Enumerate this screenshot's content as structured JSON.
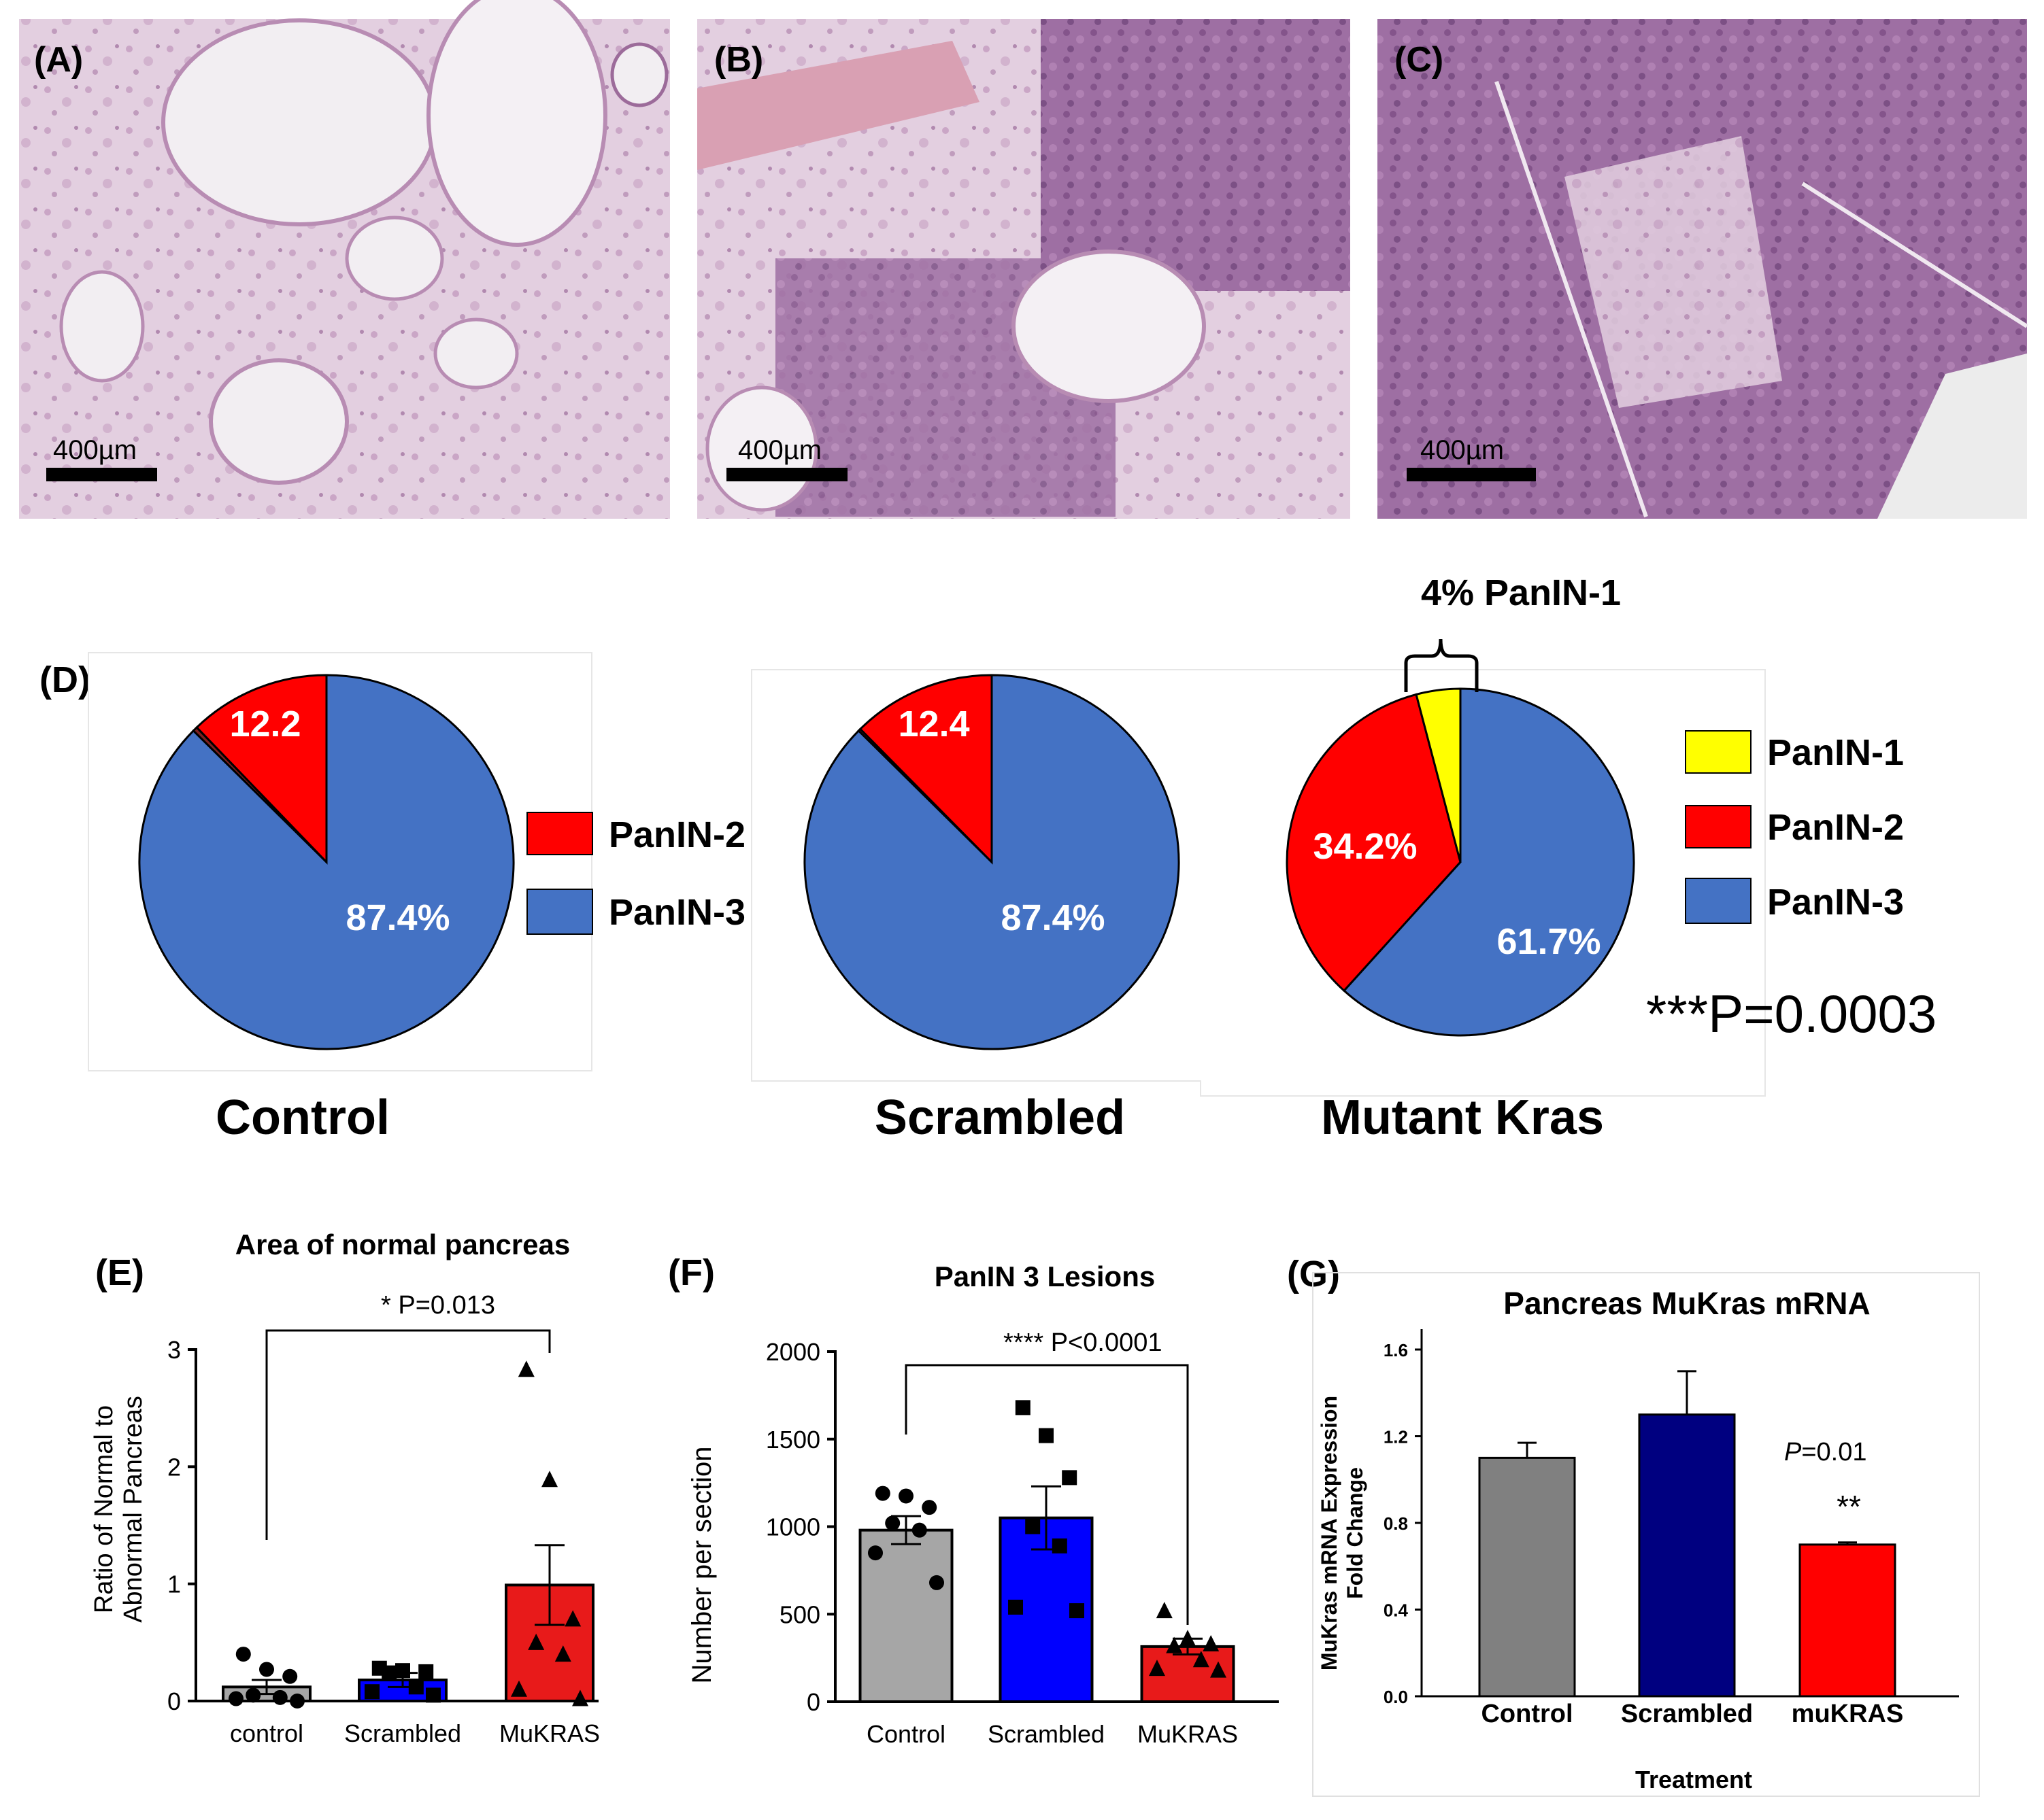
{
  "micrographs": [
    {
      "panel_label": "(A)",
      "scale_bar_label": "400µm"
    },
    {
      "panel_label": "(B)",
      "scale_bar_label": "400µm"
    },
    {
      "panel_label": "(C)",
      "scale_bar_label": "400µm"
    }
  ],
  "colors": {
    "blue": "#4472C4",
    "red": "#FF0000",
    "yellow": "#FFFF00",
    "gray": "#A6A6A6",
    "bar_blue": "#0000FF",
    "bar_red": "#E81A1A",
    "gray_g": "#808080",
    "navy": "#000080",
    "red_g": "#FF0000",
    "tissue_pink": "#c49bbd",
    "tissue_dark": "#8a5a90",
    "tissue_light": "#ebdde9"
  },
  "panel_d": {
    "panel_label": "(D)",
    "brace_label": "4% PanIN-1",
    "p_value": "***P=0.0003",
    "legend_left": [
      "PanIN-2",
      "PanIN-3"
    ],
    "legend_right": [
      "PanIN-1",
      "PanIN-2",
      "PanIN-3"
    ]
  },
  "panel_e": {
    "panel_label": "(E)",
    "sig_label": "* P=0.013"
  },
  "panel_f": {
    "panel_label": "(F)",
    "sig_label": "**** P<0.0001"
  },
  "panel_g": {
    "panel_label": "(G)",
    "sig_label": "**",
    "p_label": "P=0.01"
  },
  "chart_data": [
    {
      "type": "pie",
      "title": "Control",
      "slices": [
        {
          "label": "PanIN-2",
          "value": 12.2,
          "display": "12.2",
          "color": "#FF0000"
        },
        {
          "label": "PanIN-3",
          "value": 87.4,
          "display": "87.4%",
          "color": "#4472C4"
        },
        {
          "label": "Other",
          "value": 0.4,
          "display": "",
          "color": "#7f2020"
        }
      ]
    },
    {
      "type": "pie",
      "title": "Scrambled",
      "slices": [
        {
          "label": "PanIN-2",
          "value": 12.4,
          "display": "12.4",
          "color": "#FF0000"
        },
        {
          "label": "PanIN-3",
          "value": 87.4,
          "display": "87.4%",
          "color": "#4472C4"
        },
        {
          "label": "Other",
          "value": 0.2,
          "display": "",
          "color": "#7f2020"
        }
      ]
    },
    {
      "type": "pie",
      "title": "Mutant Kras",
      "slices": [
        {
          "label": "PanIN-1",
          "value": 4.1,
          "display": "",
          "color": "#FFFF00"
        },
        {
          "label": "PanIN-2",
          "value": 34.2,
          "display": "34.2%",
          "color": "#FF0000"
        },
        {
          "label": "PanIN-3",
          "value": 61.7,
          "display": "61.7%",
          "color": "#4472C4"
        }
      ]
    },
    {
      "type": "bar",
      "title": "Area of normal pancreas",
      "ylabel": "Ratio of Normal to Abnormal Pancreas",
      "ylim": [
        0,
        3
      ],
      "yticks": [
        0,
        1,
        2,
        3
      ],
      "categories": [
        "control",
        "Scrambled",
        "MuKRAS"
      ],
      "values": [
        0.12,
        0.18,
        0.99
      ],
      "errors": [
        0.06,
        0.06,
        0.34
      ],
      "colors": [
        "#A6A6A6",
        "#0000FF",
        "#E81A1A"
      ],
      "markers": [
        "circle",
        "square",
        "triangle"
      ],
      "points": [
        [
          0.4,
          0.27,
          0.21,
          0.05,
          0.03,
          0.02,
          0.0
        ],
        [
          0.28,
          0.26,
          0.25,
          0.24,
          0.12,
          0.08,
          0.05
        ],
        [
          2.83,
          1.89,
          0.7,
          0.5,
          0.4,
          0.1,
          0.02
        ]
      ]
    },
    {
      "type": "bar",
      "title": "PanIN 3 Lesions",
      "ylabel": "Number per section",
      "ylim": [
        0,
        2000
      ],
      "yticks": [
        0,
        500,
        1000,
        1500,
        2000
      ],
      "categories": [
        "Control",
        "Scrambled",
        "MuKRAS"
      ],
      "values": [
        980,
        1050,
        315
      ],
      "errors": [
        80,
        180,
        45
      ],
      "colors": [
        "#A6A6A6",
        "#0000FF",
        "#E81A1A"
      ],
      "markers": [
        "circle",
        "square",
        "triangle"
      ],
      "points": [
        [
          1190,
          1175,
          1110,
          1020,
          980,
          850,
          680
        ],
        [
          1680,
          1520,
          1280,
          1000,
          890,
          540,
          520
        ],
        [
          520,
          360,
          330,
          320,
          240,
          190,
          180
        ]
      ]
    },
    {
      "type": "bar",
      "title": "Pancreas MuKras mRNA",
      "ylabel": "MuKras mRNA Expression Fold Change",
      "xlabel": "Treatment",
      "ylim": [
        0,
        1.6
      ],
      "yticks": [
        "0.0",
        "0.4",
        "0.8",
        "1.2",
        "1.6"
      ],
      "categories": [
        "Control",
        "Scrambled",
        "muKRAS"
      ],
      "values": [
        1.1,
        1.3,
        0.7
      ],
      "errors": [
        0.07,
        0.2,
        0.01
      ],
      "colors": [
        "#808080",
        "#000080",
        "#FF0000"
      ]
    }
  ]
}
